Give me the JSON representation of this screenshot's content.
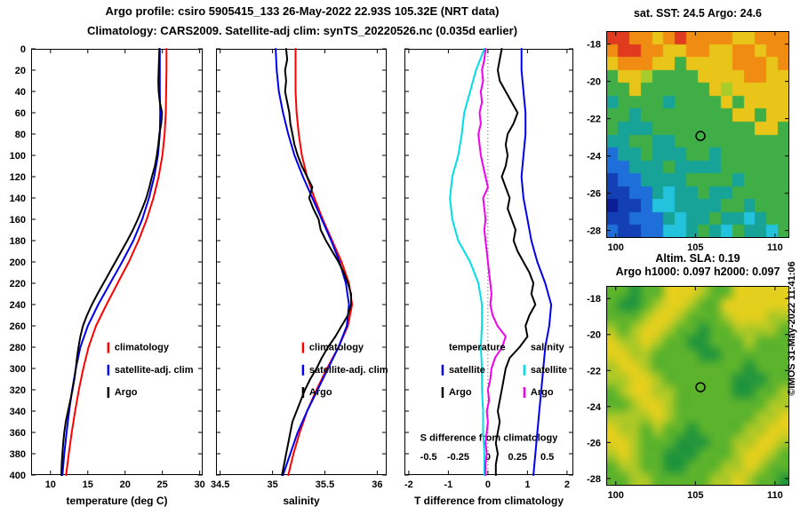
{
  "titles": {
    "line1": "Argo profile: csiro 5905415_133 26-May-2022 22.93S 105.32E (NRT data)",
    "line2": "Climatology: CARS2009. Satellite-adj clim: synTS_20220526.nc (0.035d earlier)"
  },
  "credit": "©IMOS 31-May-2022 11:41:06",
  "chart_data": [
    {
      "id": "temperature_profile",
      "type": "line",
      "xlabel": "temperature (deg C)",
      "xlim": [
        7.4,
        30.4
      ],
      "ylim": [
        0,
        400
      ],
      "xticks": [
        10,
        15,
        20,
        25,
        30
      ],
      "yticks": [
        0,
        20,
        40,
        60,
        80,
        100,
        120,
        140,
        160,
        180,
        200,
        220,
        240,
        260,
        280,
        300,
        320,
        340,
        360,
        380,
        400
      ],
      "legends": [
        {
          "fx": 0.45,
          "depths": [
            283,
            304,
            325
          ],
          "entries": [
            {
              "label": "climatology",
              "color": "#ff0000"
            },
            {
              "label": "satellite-adj. clim",
              "color": "#0000ee"
            },
            {
              "label": "Argo",
              "color": "#000000"
            }
          ]
        }
      ],
      "series": [
        {
          "name": "climatology",
          "color": "#ff0000",
          "depths": [
            0,
            20,
            40,
            60,
            80,
            100,
            120,
            140,
            160,
            180,
            200,
            220,
            240,
            260,
            280,
            300,
            320,
            340,
            360,
            380,
            400
          ],
          "values": [
            25.55,
            25.55,
            25.5,
            25.45,
            25.3,
            25.0,
            24.5,
            23.8,
            22.9,
            21.8,
            20.5,
            19.0,
            17.5,
            16.1,
            15.1,
            14.4,
            13.8,
            13.3,
            12.85,
            12.45,
            12.1
          ]
        },
        {
          "name": "satellite-adj-clim",
          "color": "#0000ee",
          "depths": [
            0,
            20,
            40,
            60,
            80,
            100,
            120,
            140,
            160,
            180,
            200,
            220,
            240,
            260,
            280,
            300,
            320,
            340,
            360,
            380,
            400
          ],
          "values": [
            24.65,
            24.65,
            24.65,
            24.7,
            24.65,
            24.4,
            23.9,
            23.2,
            22.3,
            21.1,
            19.6,
            18.0,
            16.4,
            15.0,
            14.0,
            13.4,
            12.9,
            12.5,
            12.15,
            11.85,
            11.6
          ]
        },
        {
          "name": "argo",
          "color": "#000000",
          "depths": [
            0,
            10,
            20,
            30,
            40,
            50,
            60,
            70,
            80,
            90,
            100,
            110,
            120,
            130,
            140,
            150,
            160,
            170,
            180,
            190,
            200,
            210,
            220,
            230,
            240,
            250,
            260,
            270,
            280,
            290,
            300,
            310,
            320,
            330,
            340,
            350,
            360,
            370,
            380,
            390,
            400
          ],
          "values": [
            24.6,
            24.55,
            24.5,
            24.45,
            24.5,
            24.65,
            24.95,
            24.85,
            24.6,
            24.45,
            24.25,
            24.0,
            23.6,
            23.25,
            22.85,
            22.3,
            21.7,
            21.05,
            20.3,
            19.5,
            18.7,
            17.9,
            17.1,
            16.3,
            15.55,
            14.9,
            14.35,
            14.0,
            13.75,
            13.55,
            13.4,
            13.2,
            12.95,
            12.65,
            12.35,
            12.05,
            11.85,
            11.7,
            11.6,
            11.5,
            11.45
          ]
        }
      ]
    },
    {
      "id": "salinity_profile",
      "type": "line",
      "xlabel": "salinity",
      "xlim": [
        34.46,
        36.09
      ],
      "ylim": [
        0,
        400
      ],
      "xticks": [
        34.5,
        35,
        35.5,
        36
      ],
      "yticks": [
        0,
        20,
        40,
        60,
        80,
        100,
        120,
        140,
        160,
        180,
        200,
        220,
        240,
        260,
        280,
        300,
        320,
        340,
        360,
        380,
        400
      ],
      "legends": [
        {
          "fx": 0.51,
          "depths": [
            283,
            304,
            325
          ],
          "entries": [
            {
              "label": "climatology",
              "color": "#ff0000"
            },
            {
              "label": "satellite-adj. clim",
              "color": "#0000ee"
            },
            {
              "label": "Argo",
              "color": "#000000"
            }
          ]
        }
      ],
      "series": [
        {
          "name": "climatology",
          "color": "#ff0000",
          "depths": [
            0,
            20,
            40,
            60,
            80,
            100,
            120,
            140,
            160,
            180,
            200,
            220,
            240,
            260,
            280,
            300,
            320,
            340,
            360,
            380,
            400
          ],
          "values": [
            35.22,
            35.22,
            35.22,
            35.23,
            35.25,
            35.28,
            35.33,
            35.4,
            35.48,
            35.57,
            35.66,
            35.73,
            35.76,
            35.72,
            35.63,
            35.52,
            35.42,
            35.33,
            35.26,
            35.2,
            35.15
          ]
        },
        {
          "name": "satellite-adj-clim",
          "color": "#0000ee",
          "depths": [
            0,
            20,
            40,
            60,
            80,
            100,
            120,
            140,
            160,
            180,
            200,
            220,
            240,
            260,
            280,
            300,
            320,
            340,
            360,
            380,
            400
          ],
          "values": [
            35.03,
            35.04,
            35.06,
            35.1,
            35.15,
            35.21,
            35.29,
            35.38,
            35.47,
            35.56,
            35.64,
            35.7,
            35.73,
            35.71,
            35.63,
            35.53,
            35.43,
            35.33,
            35.24,
            35.17,
            35.1
          ]
        },
        {
          "name": "argo",
          "color": "#000000",
          "depths": [
            0,
            10,
            20,
            30,
            40,
            50,
            60,
            70,
            80,
            90,
            100,
            110,
            120,
            130,
            140,
            150,
            160,
            170,
            180,
            190,
            200,
            210,
            220,
            230,
            240,
            250,
            260,
            270,
            280,
            290,
            300,
            310,
            320,
            330,
            340,
            350,
            360,
            370,
            380,
            390,
            400
          ],
          "values": [
            35.13,
            35.14,
            35.12,
            35.13,
            35.12,
            35.14,
            35.16,
            35.17,
            35.19,
            35.21,
            35.24,
            35.28,
            35.33,
            35.38,
            35.35,
            35.39,
            35.44,
            35.46,
            35.51,
            35.57,
            35.63,
            35.68,
            35.72,
            35.75,
            35.75,
            35.72,
            35.66,
            35.6,
            35.53,
            35.47,
            35.42,
            35.36,
            35.31,
            35.27,
            35.23,
            35.19,
            35.17,
            35.15,
            35.13,
            35.11,
            35.09
          ]
        }
      ]
    },
    {
      "id": "difference_profile",
      "type": "line",
      "xlabel": "T difference from climatology",
      "xlim": [
        -2.11,
        2.16
      ],
      "ylim": [
        0,
        400
      ],
      "xticks": [
        -2,
        -1,
        0,
        1,
        2
      ],
      "yticks": [
        0,
        20,
        40,
        60,
        80,
        100,
        120,
        140,
        160,
        180,
        200,
        220,
        240,
        260,
        280,
        300,
        320,
        340,
        360,
        380,
        400
      ],
      "zero_line": true,
      "secondary_axis": {
        "label": "S difference from climatology",
        "ticks": [
          -0.5,
          -0.25,
          0,
          0.25,
          0.5
        ],
        "scale": 3,
        "label_depth": 368,
        "ticks_depth": 386
      },
      "legends": [
        {
          "fx": 0.226,
          "depths": [
            283,
            304,
            325
          ],
          "entries": [
            {
              "label": "temperature"
            },
            {
              "label": "satellite",
              "color": "#0000ee"
            },
            {
              "label": "Argo",
              "color": "#000000"
            }
          ]
        },
        {
          "fx": 0.71,
          "depths": [
            283,
            304,
            325
          ],
          "entries": [
            {
              "label": "salinity"
            },
            {
              "label": "satellite",
              "color": "#00dde6"
            },
            {
              "label": "Argo",
              "color": "#f000f0"
            }
          ]
        }
      ],
      "series": [
        {
          "name": "argo-temp-diff",
          "axis": "T",
          "color": "#000000",
          "depths": [
            0,
            10,
            20,
            30,
            40,
            50,
            60,
            70,
            80,
            90,
            100,
            110,
            120,
            130,
            140,
            150,
            160,
            170,
            180,
            190,
            200,
            210,
            220,
            230,
            240,
            250,
            260,
            270,
            280,
            290,
            300,
            310,
            320,
            330,
            340,
            350,
            360,
            370,
            380,
            390,
            400
          ],
          "values": [
            0.35,
            0.3,
            0.25,
            0.3,
            0.45,
            0.6,
            0.75,
            0.65,
            0.5,
            0.45,
            0.5,
            0.45,
            0.35,
            0.45,
            0.55,
            0.5,
            0.6,
            0.7,
            0.65,
            0.75,
            0.9,
            1.05,
            1.15,
            1.1,
            1.2,
            1.05,
            0.95,
            1.0,
            0.8,
            0.55,
            0.45,
            0.4,
            0.35,
            0.3,
            0.25,
            0.3,
            0.25,
            0.2,
            0.25,
            0.2,
            0.2
          ]
        },
        {
          "name": "satellite-temp-diff",
          "axis": "T",
          "color": "#0000ee",
          "depths": [
            0,
            20,
            40,
            60,
            80,
            100,
            120,
            140,
            160,
            180,
            200,
            220,
            240,
            260,
            280,
            300,
            320,
            340,
            360,
            380,
            400
          ],
          "values": [
            0.85,
            0.85,
            0.9,
            0.95,
            0.95,
            0.9,
            0.85,
            0.9,
            1.0,
            1.1,
            1.25,
            1.45,
            1.6,
            1.55,
            1.45,
            1.4,
            1.35,
            1.3,
            1.25,
            1.2,
            1.15
          ]
        },
        {
          "name": "satellite-sal-diff",
          "axis": "S",
          "color": "#00dde6",
          "depths": [
            0,
            20,
            40,
            60,
            80,
            100,
            120,
            140,
            160,
            180,
            200,
            220,
            240,
            260,
            280,
            300,
            320,
            340,
            360,
            380,
            400
          ],
          "values": [
            -0.03,
            -0.1,
            -0.15,
            -0.2,
            -0.22,
            -0.25,
            -0.3,
            -0.32,
            -0.3,
            -0.25,
            -0.15,
            -0.08,
            -0.05,
            -0.05,
            -0.06,
            -0.05,
            -0.05,
            -0.04,
            -0.04,
            -0.03,
            -0.03
          ]
        },
        {
          "name": "argo-sal-diff",
          "axis": "S",
          "color": "#f000f0",
          "depths": [
            0,
            10,
            20,
            30,
            40,
            50,
            60,
            70,
            80,
            90,
            100,
            110,
            120,
            130,
            140,
            150,
            160,
            170,
            180,
            190,
            200,
            210,
            220,
            230,
            240,
            250,
            260,
            270,
            280,
            290,
            300,
            310,
            320,
            330,
            340,
            350,
            360,
            370,
            380,
            390,
            400
          ],
          "values": [
            -0.02,
            -0.03,
            -0.05,
            -0.04,
            -0.06,
            -0.05,
            -0.07,
            -0.06,
            -0.08,
            -0.07,
            -0.06,
            -0.04,
            -0.02,
            0.0,
            -0.04,
            -0.03,
            -0.02,
            -0.03,
            -0.02,
            -0.01,
            0.0,
            0.01,
            0.02,
            0.03,
            0.02,
            0.04,
            0.08,
            0.15,
            0.12,
            0.06,
            0.03,
            0.02,
            0.0,
            0.01,
            -0.01,
            0.0,
            -0.01,
            -0.02,
            -0.01,
            -0.02,
            -0.02
          ]
        }
      ]
    },
    {
      "id": "sst_map",
      "type": "heatmap",
      "title": "sat. SST: 24.5 Argo: 24.6",
      "xlim": [
        99.4,
        110.9
      ],
      "ylim": [
        -17.3,
        -28.4
      ],
      "xticks": [
        100,
        105,
        110
      ],
      "yticks": [
        -18,
        -20,
        -22,
        -24,
        -26,
        -28
      ],
      "marker": {
        "lon": 105.32,
        "lat": -22.93
      },
      "smooth": false,
      "palette": {
        "R": "#e03a1f",
        "O": "#f08c12",
        "Y": "#e9c419",
        "L": "#a8cc2a",
        "G": "#3fae47",
        "T": "#17a398",
        "C": "#23c3dd",
        "B": "#1e6fd9",
        "D": "#1340b5",
        "N": "#0b1e96"
      },
      "grid": [
        "RROOYOROOOOYYOOO",
        "ORROOYYOOYYOOYOO",
        "YOOOYYGYYYYOOOYO",
        "GYYLGGGGYYYYOOYY",
        "GGYGGGGGGYLYYYYY",
        "TGGGGTGGGGYGYYYY",
        "GGTGGGGGGGGYYGYY",
        "GTTTGGGGGGGGGYYG",
        "TTGGTTGGGGGGGGGG",
        "BTTGTTTGGTGGGGGG",
        "BBTTTGTTTTGGGGGG",
        "DBBTTTTGGGGTGGGG",
        "DDBBTCTTGTTGGGGG",
        "NDDBCCTTTTGGTGGG",
        "DDBBBTCTTGTTCTGG",
        "BDDBBCCTGTCGTTCG"
      ]
    },
    {
      "id": "sla_map",
      "type": "heatmap",
      "title_line1": "Altim. SLA: 0.19",
      "title_line2": "Argo h1000: 0.097 h2000: 0.097",
      "xlim": [
        99.4,
        110.9
      ],
      "ylim": [
        -17.3,
        -28.4
      ],
      "xticks": [
        100,
        105,
        110
      ],
      "yticks": [
        -18,
        -20,
        -22,
        -24,
        -26,
        -28
      ],
      "marker": {
        "lon": 105.32,
        "lat": -22.93
      },
      "smooth": true,
      "palette": {
        "Y": "#e3cf1d",
        "L": "#abc826",
        "G": "#5cb32c",
        "D": "#23963c"
      },
      "grid": [
        "GGDGGYYYLGGYYYYY",
        "GDDGLYYLGGYYYYYY",
        "GGGLYYLGGGLYYYLL",
        "LGLYYLGGDGGLLLLG",
        "YLLYLGGDDGGGLGGG",
        "YYLLGGGGDDGGGGGG",
        "LYYLGGGGGGGGDGGG",
        "LLYYLGGGGGGDDDGG",
        "GLYYLLGGGGGDDGGL",
        "GGLYYLGGGGGGGGLL",
        "LLLLYLGGGGGGGLLY",
        "YLLGLGGDGGGGLLYY",
        "YYLGGGDDDGGLLYYL",
        "LYLGGDDDGGGLYYLG",
        "GLLGGDDGGGLLYLGG",
        "GGLLGGGGGLLYLGGD"
      ]
    }
  ]
}
